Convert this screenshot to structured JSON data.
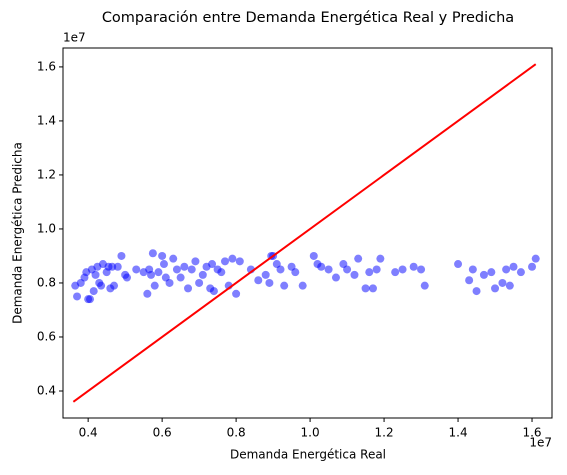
{
  "chart_data": {
    "type": "scatter",
    "title": "Comparación entre Demanda Energética Real y Predicha",
    "xlabel": "Demanda Energética Real",
    "ylabel": "Demanda Energética Predicha",
    "x_offset_label": "1e7",
    "y_offset_label": "1e7",
    "xlim": [
      3320000,
      16540000
    ],
    "ylim": [
      3000000,
      16700000
    ],
    "xticks": [
      {
        "value": 4000000,
        "label": "0.4"
      },
      {
        "value": 6000000,
        "label": "0.6"
      },
      {
        "value": 8000000,
        "label": "0.8"
      },
      {
        "value": 10000000,
        "label": "1.0"
      },
      {
        "value": 12000000,
        "label": "1.2"
      },
      {
        "value": 14000000,
        "label": "1.4"
      },
      {
        "value": 16000000,
        "label": "1.6"
      }
    ],
    "yticks": [
      {
        "value": 4000000,
        "label": "0.4"
      },
      {
        "value": 6000000,
        "label": "0.6"
      },
      {
        "value": 8000000,
        "label": "0.8"
      },
      {
        "value": 10000000,
        "label": "1.0"
      },
      {
        "value": 12000000,
        "label": "1.2"
      },
      {
        "value": 14000000,
        "label": "1.4"
      },
      {
        "value": 16000000,
        "label": "1.6"
      }
    ],
    "series": [
      {
        "color": "#0000ff",
        "opacity": 0.5,
        "x": [
          3650000.0,
          3700000.0,
          3800000.0,
          3900000.0,
          3950000.0,
          4000000.0,
          4050000.0,
          4100000.0,
          4150000.0,
          4200000.0,
          4250000.0,
          4300000.0,
          4350000.0,
          4400000.0,
          4500000.0,
          4550000.0,
          4600000.0,
          4650000.0,
          4700000.0,
          4800000.0,
          4900000.0,
          5000000.0,
          5050000.0,
          5300000.0,
          5500000.0,
          5600000.0,
          5650000.0,
          5700000.0,
          5750000.0,
          5800000.0,
          5900000.0,
          6000000.0,
          6050000.0,
          6100000.0,
          6200000.0,
          6300000.0,
          6400000.0,
          6500000.0,
          6600000.0,
          6700000.0,
          6800000.0,
          6900000.0,
          7000000.0,
          7100000.0,
          7200000.0,
          7300000.0,
          7350000.0,
          7400000.0,
          7500000.0,
          7600000.0,
          7700000.0,
          7800000.0,
          7900000.0,
          8000000.0,
          8100000.0,
          8400000.0,
          8600000.0,
          8800000.0,
          8900000.0,
          8950000.0,
          9000000.0,
          9100000.0,
          9200000.0,
          9300000.0,
          9500000.0,
          9600000.0,
          9800000.0,
          10100000.0,
          10200000.0,
          10300000.0,
          10500000.0,
          10700000.0,
          10900000.0,
          11000000.0,
          11200000.0,
          11300000.0,
          11500000.0,
          11600000.0,
          11700000.0,
          11800000.0,
          11900000.0,
          12300000.0,
          12500000.0,
          12800000.0,
          13000000.0,
          13100000.0,
          14000000.0,
          14300000.0,
          14400000.0,
          14500000.0,
          14700000.0,
          14900000.0,
          15000000.0,
          15200000.0,
          15300000.0,
          15400000.0,
          15500000.0,
          15700000.0,
          16000000.0,
          16100000.0
        ],
        "y": [
          7900000.0,
          7500000.0,
          8000000.0,
          8200000.0,
          8400000.0,
          7400000.0,
          7400000.0,
          8500000.0,
          7700000.0,
          8300000.0,
          8600000.0,
          8000000.0,
          7900000.0,
          8700000.0,
          8400000.0,
          8600000.0,
          7800000.0,
          8600000.0,
          7900000.0,
          8600000.0,
          9000000.0,
          8300000.0,
          8200000.0,
          8500000.0,
          8400000.0,
          7600000.0,
          8500000.0,
          8300000.0,
          9100000.0,
          7900000.0,
          8400000.0,
          9000000.0,
          8700000.0,
          8200000.0,
          8000000.0,
          8900000.0,
          8500000.0,
          8200000.0,
          8600000.0,
          7800000.0,
          8500000.0,
          8800000.0,
          8000000.0,
          8300000.0,
          8600000.0,
          7800000.0,
          8700000.0,
          7700000.0,
          8500000.0,
          8400000.0,
          8800000.0,
          7900000.0,
          8900000.0,
          7600000.0,
          8800000.0,
          8500000.0,
          8100000.0,
          8300000.0,
          8000000.0,
          9000000.0,
          9000000.0,
          8700000.0,
          8500000.0,
          7900000.0,
          8600000.0,
          8400000.0,
          7900000.0,
          9000000.0,
          8700000.0,
          8600000.0,
          8500000.0,
          8200000.0,
          8700000.0,
          8500000.0,
          8300000.0,
          8900000.0,
          7800000.0,
          8400000.0,
          7800000.0,
          8500000.0,
          8900000.0,
          8400000.0,
          8500000.0,
          8600000.0,
          8500000.0,
          7900000.0,
          8700000.0,
          8100000.0,
          8500000.0,
          7700000.0,
          8300000.0,
          8400000.0,
          7800000.0,
          8000000.0,
          8500000.0,
          7900000.0,
          8600000.0,
          8400000.0,
          8600000.0,
          8900000.0
        ]
      },
      {
        "type": "line",
        "color": "#ff0000",
        "x": [
          3600000,
          16100000
        ],
        "y": [
          3600000,
          16100000
        ]
      }
    ]
  }
}
